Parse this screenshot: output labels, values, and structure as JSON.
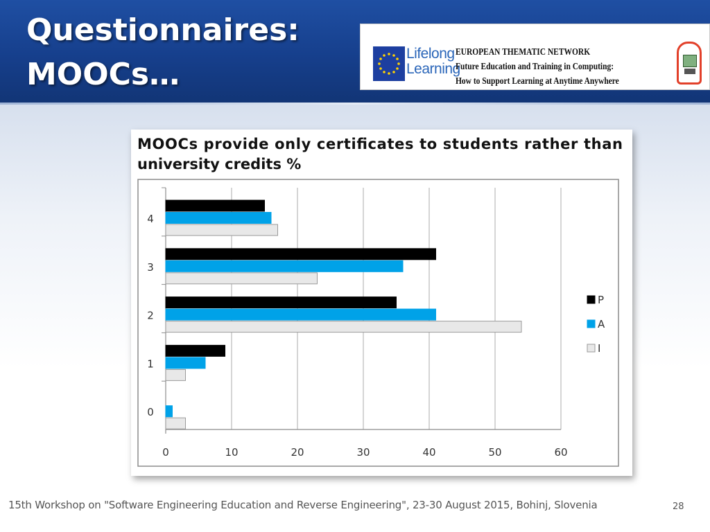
{
  "slide": {
    "title_line1": "Questionnaires:",
    "title_line2": "MOOCs…",
    "footer": "15th Workshop on \"Software Engineering Education and Reverse Engineering\", 23-30 August 2015, Bohinj, Slovenia",
    "page_number": "28"
  },
  "banner": {
    "program_line1": "Lifelong",
    "program_line2": "Learning",
    "line1": "EUROPEAN THEMATIC NETWORK",
    "line2": "Future Education and Training in Computing:",
    "line3": "How to Support Learning at Anytime Anywhere",
    "logos": [
      "eu-flag-icon",
      "computer-logo-icon"
    ]
  },
  "chart_data": {
    "type": "bar",
    "orientation": "horizontal",
    "title_line1": "MOOCs  provide  only  certificates  to  students  rather  than",
    "title_line2": "university credits %",
    "categories": [
      "4",
      "3",
      "2",
      "1",
      "0"
    ],
    "series": [
      {
        "name": "P",
        "color": "#000000",
        "values": [
          15,
          41,
          35,
          9,
          0
        ]
      },
      {
        "name": "A",
        "color": "#00a2e8",
        "values": [
          16,
          36,
          41,
          6,
          1
        ]
      },
      {
        "name": "I",
        "color": "#e8e8e8",
        "values": [
          17,
          23,
          54,
          3,
          3
        ]
      }
    ],
    "xlim": [
      0,
      60
    ],
    "xticks": [
      "0",
      "10",
      "20",
      "30",
      "40",
      "50",
      "60"
    ],
    "grid": true,
    "legend_position": "right"
  }
}
